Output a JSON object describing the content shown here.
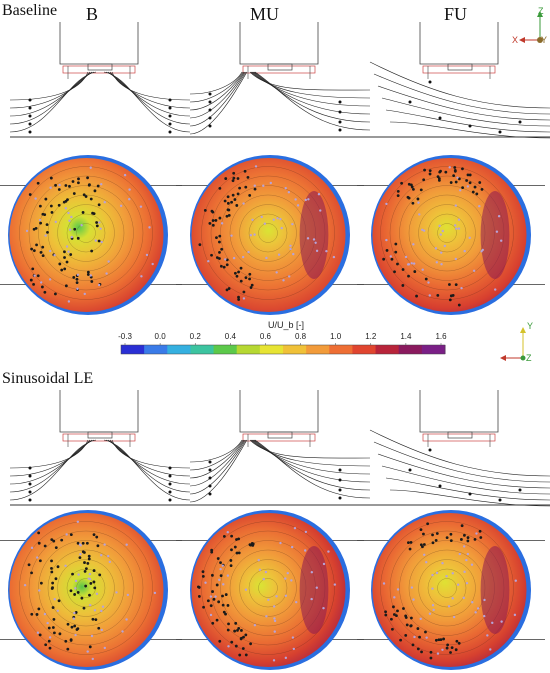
{
  "figure": {
    "section_titles": [
      "Baseline",
      "Sinusoidal LE"
    ],
    "columns": [
      "B",
      "MU",
      "FU"
    ],
    "colorbar": {
      "label": "U/U_b [-]",
      "ticks": [
        "-0.3",
        "0.0",
        "0.2",
        "0.4",
        "0.6",
        "0.8",
        "1.0",
        "1.2",
        "1.4",
        "1.6"
      ],
      "colors": [
        "#2a2fd4",
        "#3a7be8",
        "#35b0e0",
        "#3cc4a0",
        "#5cc94a",
        "#b6d832",
        "#e7e433",
        "#f0c138",
        "#f29b3a",
        "#ee6e34",
        "#e0452f",
        "#b8243a",
        "#8a1a5e",
        "#7a1f86"
      ]
    },
    "axes_top": {
      "horizontal": "X",
      "vertical": "Z",
      "out_of_plane": "Y"
    },
    "axes_mid": {
      "horizontal": "Z",
      "vertical": "Y"
    }
  }
}
